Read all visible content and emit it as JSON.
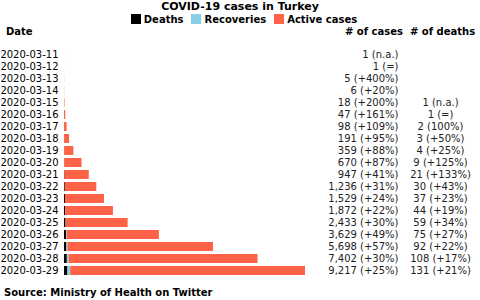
{
  "chart_data": {
    "type": "bar",
    "orientation": "horizontal",
    "stacked": true,
    "title": "COVID-19 cases in Turkey",
    "legend": "top",
    "column_headers": [
      "Date",
      "# of cases",
      "# of deaths"
    ],
    "categories": [
      "2020-03-11",
      "2020-03-12",
      "2020-03-13",
      "2020-03-14",
      "2020-03-15",
      "2020-03-16",
      "2020-03-17",
      "2020-03-18",
      "2020-03-19",
      "2020-03-20",
      "2020-03-21",
      "2020-03-22",
      "2020-03-23",
      "2020-03-24",
      "2020-03-25",
      "2020-03-26",
      "2020-03-27",
      "2020-03-28",
      "2020-03-29"
    ],
    "series": [
      {
        "name": "Deaths",
        "color": "#000000",
        "values": [
          0,
          0,
          0,
          0,
          1,
          1,
          2,
          3,
          4,
          9,
          21,
          30,
          37,
          44,
          59,
          75,
          92,
          108,
          131
        ]
      },
      {
        "name": "Recoveries",
        "color": "#87ceeb",
        "values": [
          0,
          0,
          0,
          0,
          0,
          0,
          0,
          0,
          0,
          0,
          0,
          0,
          0,
          0,
          0,
          26,
          42,
          70,
          105
        ]
      },
      {
        "name": "Active cases",
        "color": "#ff6347",
        "values": [
          1,
          1,
          5,
          6,
          17,
          46,
          96,
          188,
          355,
          661,
          926,
          1206,
          1492,
          1828,
          2374,
          3528,
          5564,
          7224,
          8981
        ]
      }
    ],
    "cases_labels": [
      "1 (n.a.)",
      "1 (=)",
      "5 (+400%)",
      "6 (+20%)",
      "18 (+200%)",
      "47 (+161%)",
      "98 (+109%)",
      "191 (+95%)",
      "359 (+88%)",
      "670 (+87%)",
      "947 (+41%)",
      "1,236 (+31%)",
      "1,529 (+24%)",
      "1,872 (+22%)",
      "2,433 (+30%)",
      "3,629 (+49%)",
      "5,698 (+57%)",
      "7,402 (+30%)",
      "9,217 (+25%)"
    ],
    "deaths_labels": [
      null,
      null,
      null,
      null,
      "1 (n.a.)",
      "1 (=)",
      "2 (100%)",
      "3 (+50%)",
      "4 (+25%)",
      "9 (+125%)",
      "21 (+133%)",
      "30 (+43%)",
      "37 (+23%)",
      "44 (+19%)",
      "59 (+34%)",
      "75 (+27%)",
      "92 (+22%)",
      "108 (+17%)",
      "131 (+21%)"
    ],
    "xlim": [
      0,
      9217
    ],
    "tick_labels": "y",
    "source": "Source: Ministry of Health on Twitter"
  }
}
